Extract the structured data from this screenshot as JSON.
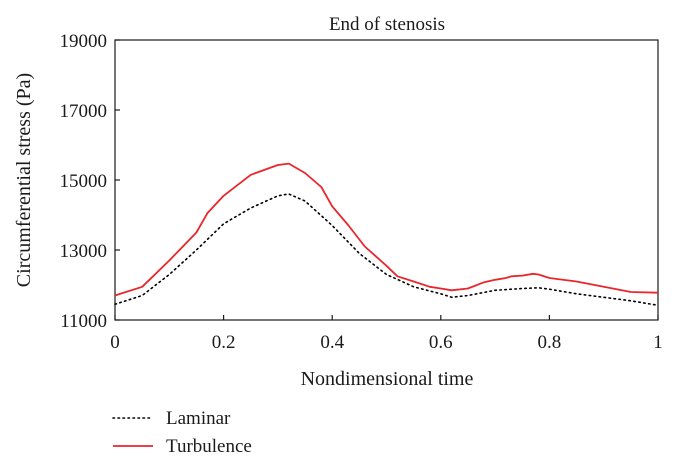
{
  "chart_data": {
    "type": "line",
    "title": "End of stenosis",
    "xlabel": "Nondimensional time",
    "ylabel": "Circumferential stress (Pa)",
    "xlim": [
      0,
      1
    ],
    "ylim": [
      11000,
      19000
    ],
    "xticks": [
      0,
      0.2,
      0.4,
      0.6,
      0.8,
      1
    ],
    "xtick_labels": [
      "0",
      "0.2",
      "0.4",
      "0.6",
      "0.8",
      "1"
    ],
    "yticks": [
      11000,
      13000,
      15000,
      17000,
      19000
    ],
    "ytick_labels": [
      "11000",
      "13000",
      "15000",
      "17000",
      "19000"
    ],
    "grid": false,
    "legend_position": "below-left",
    "series": [
      {
        "name": "Laminar",
        "color": "#000000",
        "style": "dotted",
        "x": [
          0,
          0.05,
          0.1,
          0.15,
          0.2,
          0.25,
          0.3,
          0.32,
          0.35,
          0.4,
          0.45,
          0.5,
          0.55,
          0.6,
          0.62,
          0.65,
          0.7,
          0.75,
          0.78,
          0.8,
          0.85,
          0.9,
          0.95,
          1
        ],
        "y": [
          11450,
          11700,
          12300,
          13000,
          13750,
          14200,
          14550,
          14600,
          14400,
          13700,
          12900,
          12300,
          11950,
          11750,
          11650,
          11700,
          11850,
          11900,
          11920,
          11880,
          11750,
          11650,
          11550,
          11420
        ]
      },
      {
        "name": "Turbulence",
        "color": "#e8262b",
        "style": "solid",
        "x": [
          0,
          0.05,
          0.1,
          0.15,
          0.17,
          0.2,
          0.25,
          0.3,
          0.32,
          0.35,
          0.38,
          0.4,
          0.43,
          0.46,
          0.5,
          0.52,
          0.55,
          0.58,
          0.6,
          0.62,
          0.65,
          0.68,
          0.7,
          0.72,
          0.73,
          0.75,
          0.77,
          0.78,
          0.8,
          0.85,
          0.9,
          0.95,
          1
        ],
        "y": [
          11700,
          11950,
          12700,
          13500,
          14050,
          14550,
          15150,
          15430,
          15470,
          15200,
          14800,
          14250,
          13700,
          13100,
          12550,
          12250,
          12100,
          11950,
          11900,
          11850,
          11900,
          12080,
          12150,
          12200,
          12250,
          12270,
          12320,
          12300,
          12200,
          12100,
          11950,
          11800,
          11780
        ]
      }
    ]
  }
}
